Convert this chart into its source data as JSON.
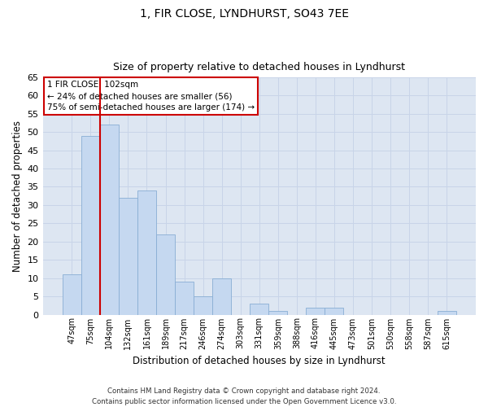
{
  "title": "1, FIR CLOSE, LYNDHURST, SO43 7EE",
  "subtitle": "Size of property relative to detached houses in Lyndhurst",
  "xlabel": "Distribution of detached houses by size in Lyndhurst",
  "ylabel": "Number of detached properties",
  "categories": [
    "47sqm",
    "75sqm",
    "104sqm",
    "132sqm",
    "161sqm",
    "189sqm",
    "217sqm",
    "246sqm",
    "274sqm",
    "303sqm",
    "331sqm",
    "359sqm",
    "388sqm",
    "416sqm",
    "445sqm",
    "473sqm",
    "501sqm",
    "530sqm",
    "558sqm",
    "587sqm",
    "615sqm"
  ],
  "values": [
    11,
    49,
    52,
    32,
    34,
    22,
    9,
    5,
    10,
    0,
    3,
    1,
    0,
    2,
    2,
    0,
    0,
    0,
    0,
    0,
    1
  ],
  "bar_color": "#c5d8f0",
  "bar_edge_color": "#89aed4",
  "red_line_x": 1.5,
  "annotation_title": "1 FIR CLOSE: 102sqm",
  "annotation_line1": "← 24% of detached houses are smaller (56)",
  "annotation_line2": "75% of semi-detached houses are larger (174) →",
  "annotation_box_color": "#ffffff",
  "annotation_border_color": "#cc0000",
  "red_line_color": "#cc0000",
  "ylim": [
    0,
    65
  ],
  "yticks": [
    0,
    5,
    10,
    15,
    20,
    25,
    30,
    35,
    40,
    45,
    50,
    55,
    60,
    65
  ],
  "grid_color": "#c8d4e8",
  "background_color": "#dde6f2",
  "footer_line1": "Contains HM Land Registry data © Crown copyright and database right 2024.",
  "footer_line2": "Contains public sector information licensed under the Open Government Licence v3.0."
}
